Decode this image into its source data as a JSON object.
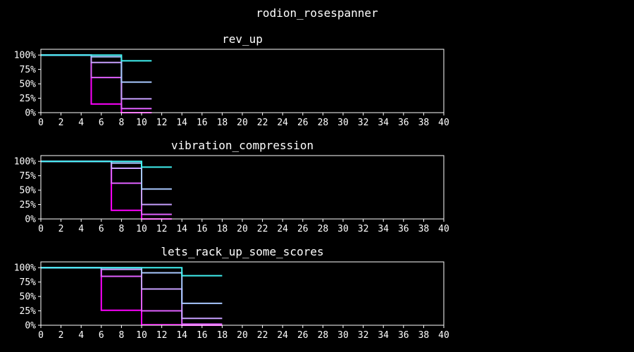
{
  "figure": {
    "title": "rodion_rosespanner"
  },
  "chart_data": [
    {
      "type": "line",
      "title": "rev_up",
      "xlim": [
        0,
        40
      ],
      "ylim": [
        0,
        1.1
      ],
      "x_ticks": [
        0,
        2,
        4,
        6,
        8,
        10,
        12,
        14,
        16,
        18,
        20,
        22,
        24,
        26,
        28,
        30,
        32,
        34,
        36,
        38,
        40
      ],
      "y_ticks": [
        0,
        0.25,
        0.5,
        0.75,
        1.0
      ],
      "y_tick_labels": [
        "0%",
        "25%",
        "50%",
        "75%",
        "100%"
      ],
      "series": [
        {
          "color": "#ff00ff",
          "points": [
            [
              0,
              1.0
            ],
            [
              5,
              1.0
            ],
            [
              5,
              0.15
            ],
            [
              8,
              0.15
            ],
            [
              8,
              0.0
            ],
            [
              11,
              0.0
            ]
          ]
        },
        {
          "color": "#e060ff",
          "points": [
            [
              0,
              1.0
            ],
            [
              5,
              1.0
            ],
            [
              5,
              0.61
            ],
            [
              8,
              0.61
            ],
            [
              8,
              0.07
            ],
            [
              11,
              0.07
            ]
          ]
        },
        {
          "color": "#c8a0ff",
          "points": [
            [
              0,
              1.0
            ],
            [
              5,
              1.0
            ],
            [
              5,
              0.87
            ],
            [
              8,
              0.87
            ],
            [
              8,
              0.24
            ],
            [
              11,
              0.24
            ]
          ]
        },
        {
          "color": "#a8c8ff",
          "points": [
            [
              0,
              1.0
            ],
            [
              5,
              1.0
            ],
            [
              5,
              0.97
            ],
            [
              8,
              0.97
            ],
            [
              8,
              0.53
            ],
            [
              11,
              0.53
            ]
          ]
        },
        {
          "color": "#40f0f0",
          "points": [
            [
              0,
              1.0
            ],
            [
              8,
              1.0
            ],
            [
              8,
              0.9
            ],
            [
              11,
              0.9
            ]
          ]
        }
      ]
    },
    {
      "type": "line",
      "title": "vibration_compression",
      "xlim": [
        0,
        40
      ],
      "ylim": [
        0,
        1.1
      ],
      "x_ticks": [
        0,
        2,
        4,
        6,
        8,
        10,
        12,
        14,
        16,
        18,
        20,
        22,
        24,
        26,
        28,
        30,
        32,
        34,
        36,
        38,
        40
      ],
      "y_ticks": [
        0,
        0.25,
        0.5,
        0.75,
        1.0
      ],
      "y_tick_labels": [
        "0%",
        "25%",
        "50%",
        "75%",
        "100%"
      ],
      "series": [
        {
          "color": "#ff00ff",
          "points": [
            [
              0,
              1.0
            ],
            [
              7,
              1.0
            ],
            [
              7,
              0.15
            ],
            [
              10,
              0.15
            ],
            [
              10,
              0.0
            ],
            [
              13,
              0.0
            ]
          ]
        },
        {
          "color": "#e060ff",
          "points": [
            [
              0,
              1.0
            ],
            [
              7,
              1.0
            ],
            [
              7,
              0.62
            ],
            [
              10,
              0.62
            ],
            [
              10,
              0.08
            ],
            [
              13,
              0.08
            ]
          ]
        },
        {
          "color": "#c8a0ff",
          "points": [
            [
              0,
              1.0
            ],
            [
              7,
              1.0
            ],
            [
              7,
              0.88
            ],
            [
              10,
              0.88
            ],
            [
              10,
              0.25
            ],
            [
              13,
              0.25
            ]
          ]
        },
        {
          "color": "#a8c8ff",
          "points": [
            [
              0,
              1.0
            ],
            [
              7,
              1.0
            ],
            [
              7,
              0.97
            ],
            [
              10,
              0.97
            ],
            [
              10,
              0.52
            ],
            [
              13,
              0.52
            ]
          ]
        },
        {
          "color": "#40f0f0",
          "points": [
            [
              0,
              1.0
            ],
            [
              10,
              1.0
            ],
            [
              10,
              0.9
            ],
            [
              13,
              0.9
            ]
          ]
        }
      ]
    },
    {
      "type": "line",
      "title": "lets_rack_up_some_scores",
      "xlim": [
        0,
        40
      ],
      "ylim": [
        0,
        1.1
      ],
      "x_ticks": [
        0,
        2,
        4,
        6,
        8,
        10,
        12,
        14,
        16,
        18,
        20,
        22,
        24,
        26,
        28,
        30,
        32,
        34,
        36,
        38,
        40
      ],
      "y_ticks": [
        0,
        0.25,
        0.5,
        0.75,
        1.0
      ],
      "y_tick_labels": [
        "0%",
        "25%",
        "50%",
        "75%",
        "100%"
      ],
      "series": [
        {
          "color": "#ff00ff",
          "points": [
            [
              0,
              1.0
            ],
            [
              6,
              1.0
            ],
            [
              6,
              0.26
            ],
            [
              10,
              0.26
            ],
            [
              10,
              0.01
            ],
            [
              14,
              0.01
            ],
            [
              14,
              0.0
            ],
            [
              18,
              0.0
            ]
          ]
        },
        {
          "color": "#e060ff",
          "points": [
            [
              0,
              1.0
            ],
            [
              6,
              1.0
            ],
            [
              6,
              0.85
            ],
            [
              10,
              0.85
            ],
            [
              10,
              0.25
            ],
            [
              14,
              0.25
            ],
            [
              14,
              0.02
            ],
            [
              18,
              0.02
            ]
          ]
        },
        {
          "color": "#c8a0ff",
          "points": [
            [
              0,
              1.0
            ],
            [
              6,
              1.0
            ],
            [
              6,
              0.97
            ],
            [
              10,
              0.97
            ],
            [
              10,
              0.63
            ],
            [
              14,
              0.63
            ],
            [
              14,
              0.12
            ],
            [
              18,
              0.12
            ]
          ]
        },
        {
          "color": "#a8c8ff",
          "points": [
            [
              0,
              1.0
            ],
            [
              10,
              1.0
            ],
            [
              10,
              0.91
            ],
            [
              14,
              0.91
            ],
            [
              14,
              0.38
            ],
            [
              18,
              0.38
            ]
          ]
        },
        {
          "color": "#40f0f0",
          "points": [
            [
              0,
              1.0
            ],
            [
              14,
              1.0
            ],
            [
              14,
              0.86
            ],
            [
              18,
              0.86
            ]
          ]
        }
      ]
    }
  ]
}
